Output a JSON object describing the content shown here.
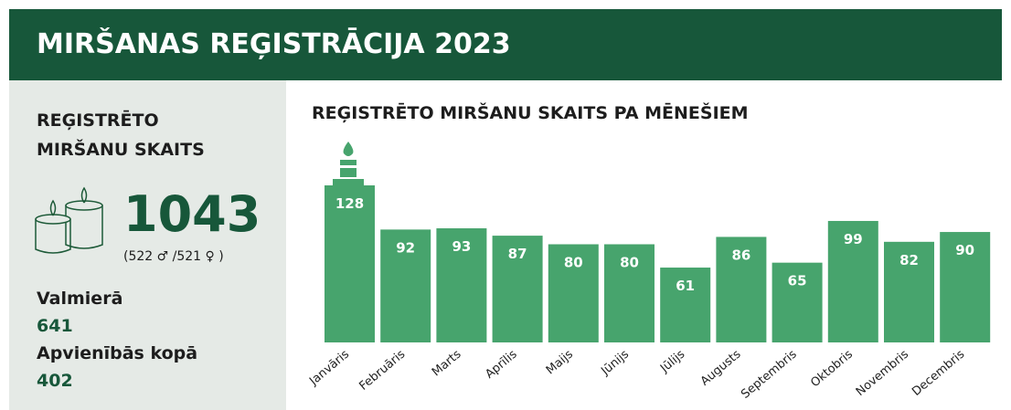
{
  "header": {
    "title": "MIRŠANAS REĢISTRĀCIJA 2023"
  },
  "summary": {
    "heading": "REĢISTRĒTO MIRŠANU SKAITS",
    "total": "1043",
    "gender_split": "(522 ♂ /521 ♀ )",
    "items": [
      {
        "label": "Valmierā",
        "value": "641"
      },
      {
        "label": "Apvienībās kopā",
        "value": "402"
      }
    ]
  },
  "chart_data": {
    "type": "bar",
    "title": "REĢISTRĒTO MIRŠANU SKAITS PA MĒNEŠIEM",
    "categories": [
      "Janvāris",
      "Februāris",
      "Marts",
      "Aprīlis",
      "Maijs",
      "Jūnijs",
      "Jūlijs",
      "Augusts",
      "Septembris",
      "Oktobris",
      "Novembris",
      "Decembris"
    ],
    "values": [
      128,
      92,
      93,
      87,
      80,
      80,
      61,
      86,
      65,
      99,
      82,
      90
    ],
    "color": "#47a46d"
  }
}
